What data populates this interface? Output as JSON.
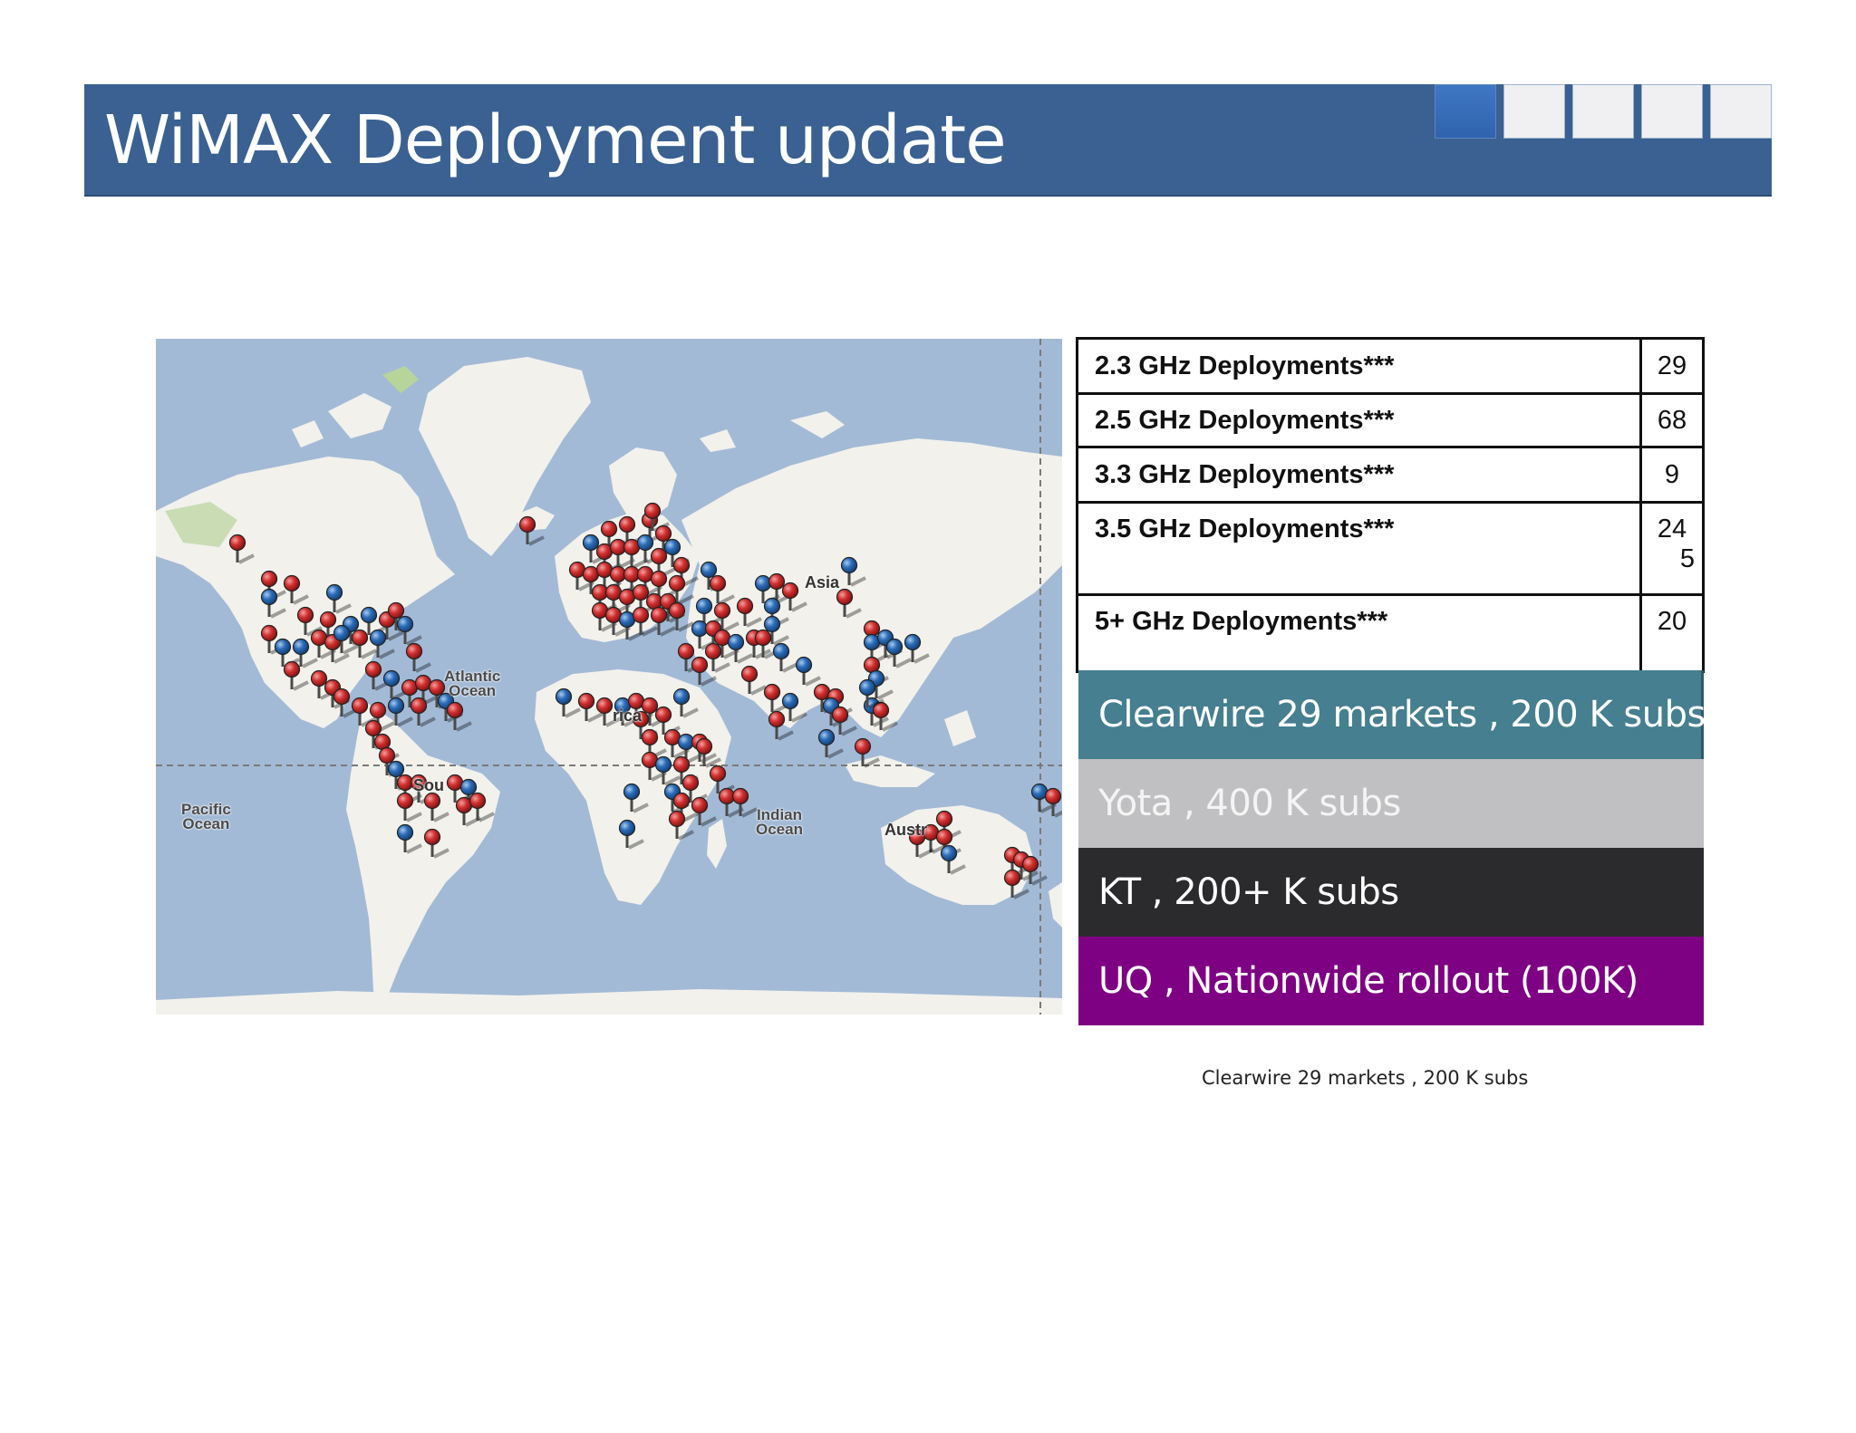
{
  "header": {
    "title": "WiMAX Deployment update",
    "nav_squares": [
      {
        "name": "slide-nav-1",
        "active": true
      },
      {
        "name": "slide-nav-2",
        "active": false
      },
      {
        "name": "slide-nav-3",
        "active": false
      },
      {
        "name": "slide-nav-4",
        "active": false
      },
      {
        "name": "slide-nav-5",
        "active": false
      }
    ]
  },
  "map": {
    "labels": {
      "atlantic": "Atlantic\nOcean",
      "pacific": "Pacific\nOcean",
      "indian": "Indian\nOcean",
      "asia": "Asia",
      "africa": "rica",
      "south_america": "Sou",
      "australia": "Austr"
    },
    "pin_colors": {
      "red": "#d23030",
      "blue": "#2b6cb8"
    }
  },
  "deployments": [
    {
      "band": "2.3 GHz Deployments***",
      "count": "29"
    },
    {
      "band": "2.5 GHz Deployments***",
      "count": "68"
    },
    {
      "band": "3.3 GHz Deployments***",
      "count": "9"
    },
    {
      "band": "3.5 GHz Deployments***",
      "count": "24",
      "count_extra": "5"
    },
    {
      "band": "5+ GHz Deployments***",
      "count": "20"
    }
  ],
  "operators": [
    {
      "label": "Clearwire 29 markets , 200 K subs",
      "color": "#457f90"
    },
    {
      "label": "Yota , 400 K subs",
      "color": "#c0c0c2"
    },
    {
      "label": "KT , 200+ K subs",
      "color": "#2b2b2d"
    },
    {
      "label": "UQ , Nationwide rollout (100K)",
      "color": "#7e0183"
    }
  ],
  "footnote": "Clearwire 29 markets , 200 K subs"
}
